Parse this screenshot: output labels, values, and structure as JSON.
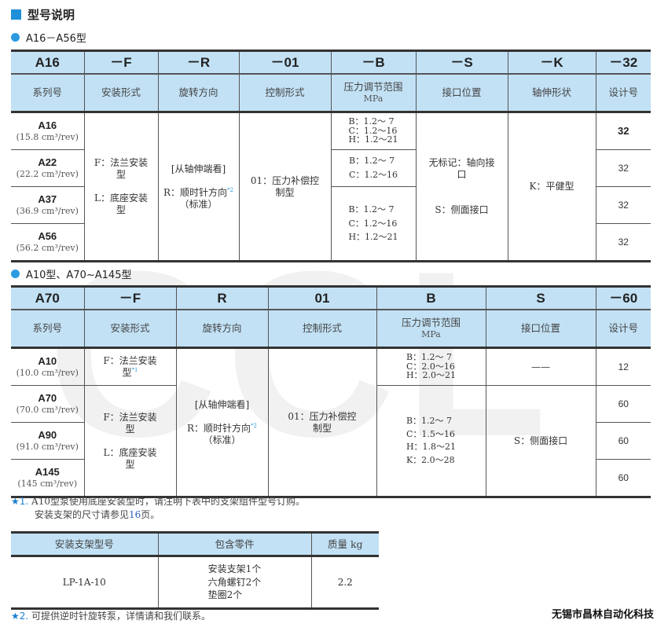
{
  "title": "型号说明",
  "section1": {
    "heading": "A16－A56型",
    "codes": [
      "A16",
      "－F",
      "－R",
      "－01",
      "－B",
      "－S",
      "－K",
      "－32"
    ],
    "labels": [
      "系列号",
      "安装形式",
      "旋转方向",
      "控制形式",
      "压力调节范围",
      "接口位置",
      "轴伸形状",
      "设计号"
    ],
    "pressure_unit": "MPa",
    "series": [
      {
        "name": "A16",
        "disp": "(15.8 cm³/rev)",
        "design": "32"
      },
      {
        "name": "A22",
        "disp": "(22.2 cm³/rev)",
        "design": "32"
      },
      {
        "name": "A37",
        "disp": "(36.9 cm³/rev)",
        "design": "32"
      },
      {
        "name": "A56",
        "disp": "(56.2 cm³/rev)",
        "design": "32"
      }
    ],
    "mount_f": "F：法兰安装型",
    "mount_l": "L：底座安装型",
    "rot_view": "[从轴伸端看]",
    "rot_r": "R：顺时针方向",
    "rot_note": "*2",
    "rot_std": "（标准）",
    "control": "01：压力补偿控制型",
    "pressure_a": [
      "B：1.2～ 7",
      "C：1.2～16",
      "H：1.2～21"
    ],
    "pressure_b": [
      "B：1.2～ 7",
      "C：1.2～16"
    ],
    "pressure_c": [
      "B：1.2～ 7",
      "C：1.2～16",
      "H：1.2～21"
    ],
    "port_none": "无标记：轴向接口",
    "port_s": "S：侧面接口",
    "shaft": "K：平健型"
  },
  "section2": {
    "heading": "A10型、A70~A145型",
    "codes": [
      "A70",
      "－F",
      "R",
      "01",
      "B",
      "S",
      "－60"
    ],
    "labels": [
      "系列号",
      "安装形式",
      "旋转方向",
      "控制形式",
      "压力调节范围",
      "接口位置",
      "设计号"
    ],
    "pressure_unit": "MPa",
    "series": [
      {
        "name": "A10",
        "disp": "(10.0 cm³/rev)",
        "design": "12"
      },
      {
        "name": "A70",
        "disp": "(70.0 cm³/rev)",
        "design": "60"
      },
      {
        "name": "A90",
        "disp": "(91.0 cm³/rev)",
        "design": "60"
      },
      {
        "name": "A145",
        "disp": "(145 cm³/rev)",
        "design": "60"
      }
    ],
    "mount_a10": "F：法兰安装型",
    "mount_a10_note": "*1",
    "mount_f": "F：法兰安装型",
    "mount_l": "L：底座安装型",
    "rot_view": "[从轴伸端看]",
    "rot_r": "R：顺时针方向",
    "rot_note": "*2",
    "rot_std": "（标准）",
    "control": "01：压力补偿控制型",
    "pressure_a10": [
      "B：1.2～ 7",
      "C：2.0～16",
      "H：2.0～21"
    ],
    "pressure_other": [
      "B：1.2～ 7",
      "C：1.5～16",
      "H：1.8～21",
      "K：2.0～28"
    ],
    "port_a10": "——",
    "port_s": "S：侧面接口"
  },
  "note1": {
    "star": "★1.",
    "line1": "A10型泵使用底座安装型时，请注明下表中的支架组件型号订购。",
    "line2a": "安装支架的尺寸请参见",
    "page": "16",
    "line2b": "页。"
  },
  "bracket_table": {
    "headers": [
      "安装支架型号",
      "包含零件",
      "质量 kg"
    ],
    "model": "LP-1A-10",
    "parts": [
      "安装支架1个",
      "六角螺钉2个",
      "垫圈2个"
    ],
    "mass": "2.2"
  },
  "note2": {
    "star": "★2.",
    "text": "可提供逆时针旋转泵，详情请和我们联系。"
  },
  "company": "无锡市昌林自动化科技",
  "watermark": "CCLair",
  "colors": {
    "header_bg": "#c2e1f5",
    "accent": "#1e8fd8"
  }
}
